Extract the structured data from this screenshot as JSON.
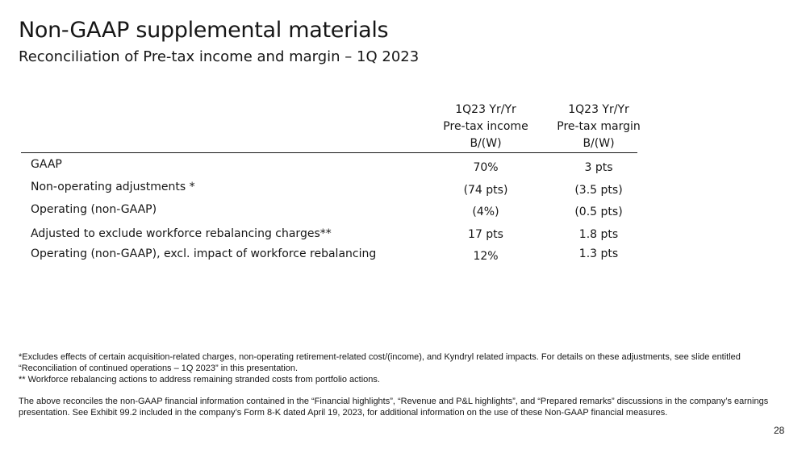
{
  "header": {
    "title": "Non-GAAP supplemental materials",
    "subtitle": "Reconciliation of Pre-tax income and margin – 1Q 2023"
  },
  "table": {
    "columns": [
      [
        "1Q23 Yr/Yr",
        "Pre-tax income",
        "B/(W)"
      ],
      [
        "1Q23 Yr/Yr",
        "Pre-tax margin",
        "B/(W)"
      ]
    ],
    "rows": [
      {
        "label": "GAAP",
        "income": "70%",
        "margin": "3 pts"
      },
      {
        "label": "Non-operating adjustments *",
        "income": "(74 pts)",
        "margin": "(3.5 pts)"
      },
      {
        "label": "Operating (non-GAAP)",
        "income": "(4%)",
        "margin": "(0.5 pts)"
      },
      {
        "label": "Adjusted to exclude workforce rebalancing charges**",
        "income": "17 pts",
        "margin": "1.8 pts"
      },
      {
        "label": "Operating (non-GAAP), excl. impact of workforce rebalancing",
        "income": "12%",
        "margin": "1.3 pts"
      }
    ]
  },
  "footnotes": {
    "note1": "*Excludes effects of certain acquisition-related charges, non-operating retirement-related cost/(income), and Kyndryl related impacts. For details on these adjustments, see slide entitled “Reconciliation of continued operations – 1Q 2023” in this presentation.",
    "note2": "** Workforce rebalancing actions to address remaining stranded costs from portfolio actions.",
    "note3": "The above reconciles the non-GAAP financial information contained in the “Financial highlights”, “Revenue and P&L highlights”, and “Prepared remarks” discussions in the company’s earnings presentation. See Exhibit 99.2 included in the company’s Form 8-K dated April 19, 2023, for additional information on the use of these Non-GAAP financial measures."
  },
  "page_number": "28"
}
